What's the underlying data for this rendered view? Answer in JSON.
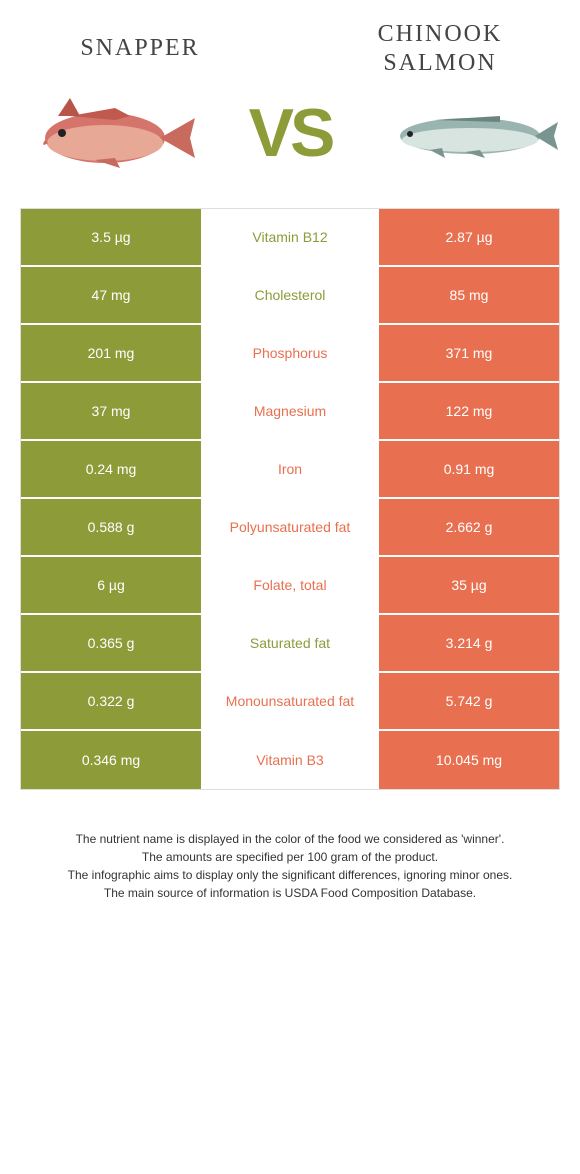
{
  "colors": {
    "left": "#8e9b39",
    "right": "#e87050",
    "bg": "#ffffff"
  },
  "header": {
    "left_title": "Snapper",
    "right_title": "Chinook salmon",
    "vs": "VS"
  },
  "rows": [
    {
      "left": "3.5 µg",
      "label": "Vitamin B12",
      "right": "2.87 µg",
      "winner": "left"
    },
    {
      "left": "47 mg",
      "label": "Cholesterol",
      "right": "85 mg",
      "winner": "left"
    },
    {
      "left": "201 mg",
      "label": "Phosphorus",
      "right": "371 mg",
      "winner": "right"
    },
    {
      "left": "37 mg",
      "label": "Magnesium",
      "right": "122 mg",
      "winner": "right"
    },
    {
      "left": "0.24 mg",
      "label": "Iron",
      "right": "0.91 mg",
      "winner": "right"
    },
    {
      "left": "0.588 g",
      "label": "Polyunsaturated fat",
      "right": "2.662 g",
      "winner": "right"
    },
    {
      "left": "6 µg",
      "label": "Folate, total",
      "right": "35 µg",
      "winner": "right"
    },
    {
      "left": "0.365 g",
      "label": "Saturated fat",
      "right": "3.214 g",
      "winner": "left"
    },
    {
      "left": "0.322 g",
      "label": "Monounsaturated fat",
      "right": "5.742 g",
      "winner": "right"
    },
    {
      "left": "0.346 mg",
      "label": "Vitamin B3",
      "right": "10.045 mg",
      "winner": "right"
    }
  ],
  "footer": {
    "line1": "The nutrient name is displayed in the color of the food we considered as 'winner'.",
    "line2": "The amounts are specified per 100 gram of the product.",
    "line3": "The infographic aims to display only the significant differences, ignoring minor ones.",
    "line4": "The main source of information is USDA Food Composition Database."
  }
}
